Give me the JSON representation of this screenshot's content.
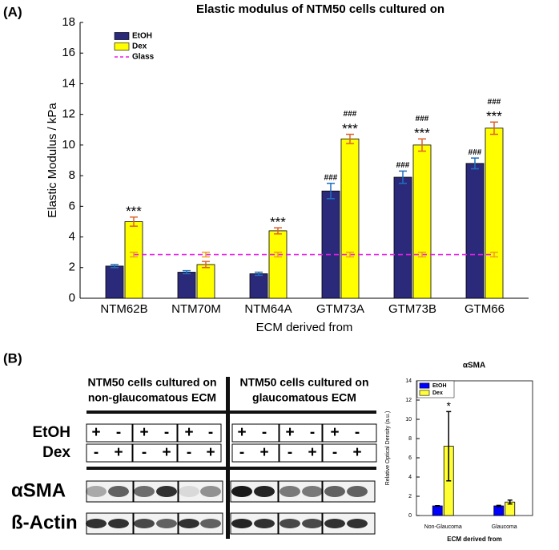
{
  "chart_data": [
    {
      "type": "bar",
      "panel_label": "(A)",
      "title": "Elastic modulus of NTM50 cells cultured on",
      "xlabel": "ECM derived from",
      "ylabel": "Elastic Modulus / kPa",
      "categories": [
        "NTM62B",
        "NTM70M",
        "NTM64A",
        "GTM73A",
        "GTM73B",
        "GTM66"
      ],
      "ylim": [
        0,
        18
      ],
      "yticks": [
        0,
        2,
        4,
        6,
        8,
        10,
        12,
        14,
        16,
        18
      ],
      "legend": "upper left",
      "series": [
        {
          "name": "EtOH",
          "color": "#2b2a7a",
          "error_color": "#1f6fc0",
          "values": [
            2.1,
            1.7,
            1.6,
            7.0,
            7.9,
            8.8
          ],
          "errors": [
            0.1,
            0.1,
            0.1,
            0.5,
            0.4,
            0.35
          ],
          "hashes": [
            null,
            null,
            null,
            "###",
            "###",
            "###"
          ]
        },
        {
          "name": "Dex",
          "color": "#ffff00",
          "error_color": "#e0602a",
          "values": [
            5.0,
            2.2,
            4.4,
            10.4,
            10.0,
            11.1
          ],
          "errors": [
            0.3,
            0.2,
            0.2,
            0.3,
            0.4,
            0.4
          ],
          "stars": [
            "***",
            null,
            "***",
            "***",
            "***",
            "***"
          ],
          "hashes": [
            null,
            null,
            null,
            "###",
            "###",
            "###"
          ]
        },
        {
          "name": "Glass",
          "type": "line",
          "color": "#e81ee8",
          "error_color": "#f0a020",
          "values": [
            2.85,
            2.85,
            2.85,
            2.85,
            2.85,
            2.85
          ],
          "errors": [
            0.15,
            0.15,
            0.15,
            0.15,
            0.15,
            0.15
          ]
        }
      ]
    },
    {
      "type": "bar",
      "title": "αSMA",
      "xlabel": "ECM derived from",
      "ylabel": "Relative Optical Density (a.u.)",
      "categories": [
        "Non-Glaucoma",
        "Glaucoma"
      ],
      "ylim": [
        0,
        14
      ],
      "yticks": [
        0,
        2,
        4,
        6,
        8,
        10,
        12,
        14
      ],
      "legend": "upper left",
      "series": [
        {
          "name": "EtOH",
          "color": "#0000ff",
          "error_color": "#000000",
          "values": [
            1.0,
            1.0
          ],
          "errors": [
            0.02,
            0.05
          ]
        },
        {
          "name": "Dex",
          "color": "#ffff33",
          "error_color": "#000000",
          "values": [
            7.2,
            1.4
          ],
          "errors": [
            3.6,
            0.2
          ],
          "stars": [
            "*",
            null
          ]
        }
      ]
    }
  ],
  "blot": {
    "panel_label": "(B)",
    "left_title": [
      "NTM50 cells cultured on",
      "non-glaucomatous ECM"
    ],
    "right_title": [
      "NTM50 cells cultured on",
      "glaucomatous ECM"
    ],
    "row_labels": [
      "EtOH",
      "Dex"
    ],
    "signs": [
      [
        "+",
        "-",
        "+",
        "-",
        "+",
        "-",
        "+",
        "-",
        "+",
        "-",
        "+",
        "-"
      ],
      [
        "-",
        "+",
        "-",
        "+",
        "-",
        "+",
        "-",
        "+",
        "-",
        "+",
        "-",
        "+"
      ]
    ],
    "band_labels": [
      "αSMA",
      "ß-Actin"
    ]
  }
}
